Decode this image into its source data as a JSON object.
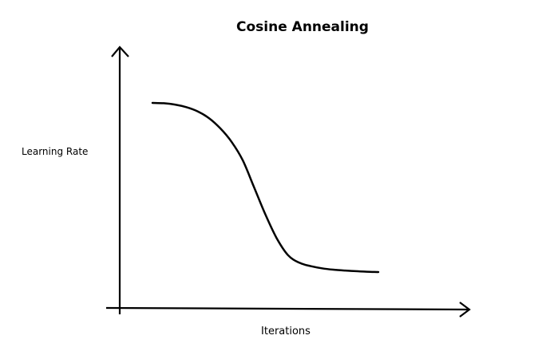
{
  "chart_data": {
    "type": "line",
    "title": "Cosine Annealing",
    "xlabel": "Iterations",
    "ylabel": "Learning Rate",
    "axis_ticks": false,
    "grid": false,
    "series": [
      {
        "values_description_free": true,
        "x": [
          0.0,
          0.05,
          0.1,
          0.15,
          0.2,
          0.25,
          0.3,
          0.35,
          0.4,
          0.45,
          0.5,
          0.55,
          0.6,
          0.65,
          0.7,
          0.75,
          0.8,
          0.85,
          0.9,
          0.95,
          1.0
        ],
        "y": [
          1.0,
          0.998,
          0.99,
          0.975,
          0.95,
          0.91,
          0.85,
          0.77,
          0.66,
          0.5,
          0.34,
          0.2,
          0.1,
          0.055,
          0.035,
          0.022,
          0.014,
          0.009,
          0.005,
          0.002,
          0.0
        ]
      }
    ],
    "color": "#000000"
  }
}
